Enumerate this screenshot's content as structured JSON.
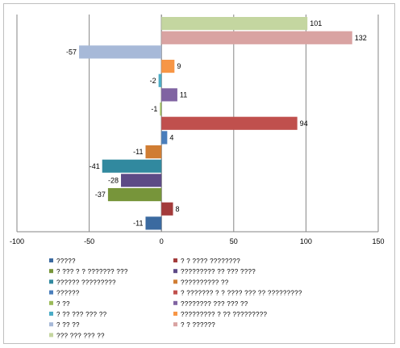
{
  "chart_data": {
    "type": "bar",
    "orientation": "horizontal",
    "xlim": [
      -100,
      150
    ],
    "xticks": [
      "-100",
      "-50",
      "0",
      "50",
      "100",
      "150"
    ],
    "grid": true,
    "legend_position": "bottom",
    "series": [
      {
        "name": "?????",
        "value": -11,
        "color": "#3b6aa0"
      },
      {
        "name": "? ? ???? ????????",
        "value": 8,
        "color": "#a33b3b"
      },
      {
        "name": "? ??? ? ? ??????? ???",
        "value": -37,
        "color": "#77953a"
      },
      {
        "name": "????????? ?? ??? ????",
        "value": -28,
        "color": "#5d4a86"
      },
      {
        "name": "?????? ?????????",
        "value": -41,
        "color": "#31899f"
      },
      {
        "name": "?????????? ??",
        "value": -11,
        "color": "#d07d33"
      },
      {
        "name": "??????",
        "value": 4,
        "color": "#4a7ebb"
      },
      {
        "name": "? ??????? ? ? ???? ??? ?? ?????????",
        "value": 94,
        "color": "#c0504d"
      },
      {
        "name": "? ??",
        "value": -1,
        "color": "#9bbb59"
      },
      {
        "name": "???????? ??? ??? ??",
        "value": 11,
        "color": "#8064a2"
      },
      {
        "name": "? ?? ??? ??? ??",
        "value": -2,
        "color": "#4bacc6"
      },
      {
        "name": "????????? ? ?? ?????????",
        "value": 9,
        "color": "#f79646"
      },
      {
        "name": "? ?? ??",
        "value": -57,
        "color": "#a7b9d8"
      },
      {
        "name": "? ? ??????",
        "value": 132,
        "color": "#d9a3a2"
      },
      {
        "name": "??? ??? ??? ??",
        "value": 101,
        "color": "#c4d6a0"
      }
    ]
  }
}
